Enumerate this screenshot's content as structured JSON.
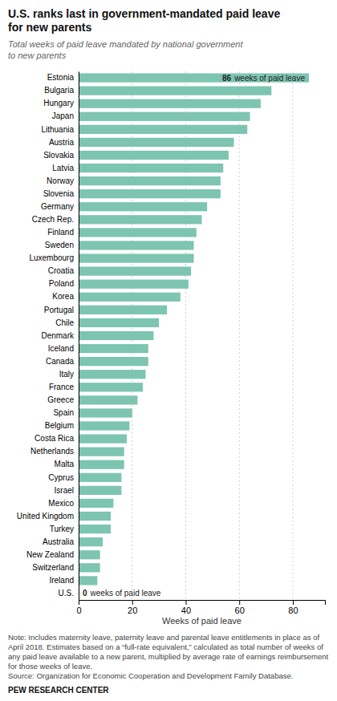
{
  "chart_data": {
    "type": "bar",
    "orientation": "horizontal",
    "title": "U.S. ranks last in government-mandated paid leave\nfor new parents",
    "subtitle": "Total weeks of paid leave mandated by national government\nto new parents",
    "xlabel": "Weeks of paid leave",
    "categories": [
      "Estonia",
      "Bulgaria",
      "Hungary",
      "Japan",
      "Lithuania",
      "Austria",
      "Slovakia",
      "Latvia",
      "Norway",
      "Slovenia",
      "Germany",
      "Czech Rep.",
      "Finland",
      "Sweden",
      "Luxembourg",
      "Croatia",
      "Poland",
      "Korea",
      "Portugal",
      "Chile",
      "Denmark",
      "Iceland",
      "Canada",
      "Italy",
      "France",
      "Greece",
      "Spain",
      "Belgium",
      "Costa Rica",
      "Netherlands",
      "Malta",
      "Cyprus",
      "Israel",
      "Mexico",
      "United Kingdom",
      "Turkey",
      "Australia",
      "New Zealand",
      "Switzerland",
      "Ireland",
      "U.S."
    ],
    "values": [
      86,
      72,
      68,
      64,
      63,
      58,
      56,
      54,
      53,
      53,
      48,
      46,
      44,
      43,
      43,
      42,
      41,
      38,
      33,
      30,
      28,
      26,
      26,
      25,
      24,
      22,
      20,
      19,
      18,
      17,
      17,
      16,
      16,
      13,
      12,
      12,
      9,
      8,
      8,
      7,
      0
    ],
    "color": "#7dc5b0",
    "xlim": [
      0,
      92
    ],
    "xticks": [
      0,
      20,
      40,
      60,
      80
    ],
    "grid": true,
    "annotations": [
      {
        "category": "Estonia",
        "text": "weeks of paid leave"
      },
      {
        "category": "U.S.",
        "text": "weeks of paid leave"
      }
    ],
    "note": "Note: Includes maternity leave, paternity leave and parental leave entitlements in place as of April 2018. Estimates based on a “full-rate equivalent,” calculated as total number of weeks of any paid leave available to a new parent, multiplied by average rate of earnings reimbursement for those weeks of leave.\nSource: Organization for Economic Cooperation and Development Family Database.",
    "credit": "PEW RESEARCH CENTER"
  }
}
